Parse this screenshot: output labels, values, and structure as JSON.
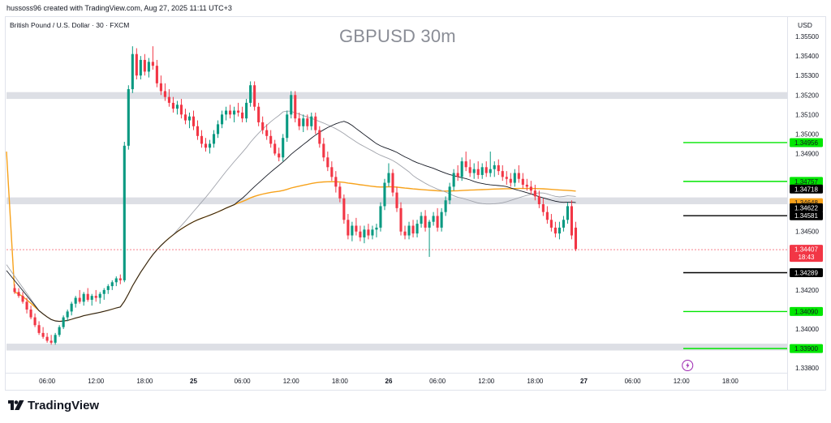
{
  "header": {
    "credit": "hussoss96 created with TradingView.com, Aug 27, 2025 11:11 UTC+3"
  },
  "symbol": {
    "label": "British Pound / U.S. Dollar · 30 · FXCM"
  },
  "currency_label": "USD",
  "brand": {
    "name": "TradingView"
  },
  "colors": {
    "up": "#089981",
    "down": "#f23645",
    "green_level": "#00e600",
    "black_level": "#000000",
    "orange": "#f7a21b",
    "zone": "#d1d4dc"
  },
  "chart_data": {
    "type": "candlestick",
    "title": "GBPUSD 30m",
    "ylim": [
      1.3378,
      1.356
    ],
    "y_ticks": [
      "1.35500",
      "1.35400",
      "1.35300",
      "1.35200",
      "1.35100",
      "1.35000",
      "1.34900",
      "1.34500",
      "1.34200",
      "1.34000",
      "1.33800"
    ],
    "x_ticks": [
      {
        "t": 8,
        "label": "06:00",
        "bold": false
      },
      {
        "t": 20,
        "label": "12:00",
        "bold": false
      },
      {
        "t": 32,
        "label": "18:00",
        "bold": false
      },
      {
        "t": 44,
        "label": "25",
        "bold": true
      },
      {
        "t": 56,
        "label": "06:00",
        "bold": false
      },
      {
        "t": 68,
        "label": "12:00",
        "bold": false
      },
      {
        "t": 80,
        "label": "18:00",
        "bold": false
      },
      {
        "t": 92,
        "label": "26",
        "bold": true
      },
      {
        "t": 104,
        "label": "06:00",
        "bold": false
      },
      {
        "t": 116,
        "label": "12:00",
        "bold": false
      },
      {
        "t": 128,
        "label": "18:00",
        "bold": false
      },
      {
        "t": 140,
        "label": "27",
        "bold": true
      },
      {
        "t": 152,
        "label": "06:00",
        "bold": false
      },
      {
        "t": 164,
        "label": "12:00",
        "bold": false
      },
      {
        "t": 176,
        "label": "18:00",
        "bold": false
      }
    ],
    "t_range": [
      -2,
      190
    ],
    "zones": [
      {
        "top": 1.35215,
        "bottom": 1.3518
      },
      {
        "top": 1.34675,
        "bottom": 1.3464
      },
      {
        "top": 1.33925,
        "bottom": 1.3389
      }
    ],
    "levels": [
      {
        "price": 1.34956,
        "label": "1.34956",
        "color": "green",
        "line": true
      },
      {
        "price": 1.34757,
        "label": "1.34757",
        "color": "green",
        "line": true
      },
      {
        "price": 1.34718,
        "label": "1.34718",
        "color": "black",
        "line": false
      },
      {
        "price": 1.34648,
        "label": "1.34648",
        "color": "orange",
        "line": false
      },
      {
        "price": 1.34622,
        "label": "1.34622",
        "color": "black",
        "line": false
      },
      {
        "price": 1.34581,
        "label": "1.34581",
        "color": "black",
        "line": true
      },
      {
        "price": 1.34289,
        "label": "1.34289",
        "color": "black",
        "line": true
      },
      {
        "price": 1.3409,
        "label": "1.34090",
        "color": "green",
        "line": true
      },
      {
        "price": 1.339,
        "label": "1.33900",
        "color": "green",
        "line": true
      }
    ],
    "current": {
      "price": 1.34407,
      "label": "1.34407",
      "countdown": "18:43"
    },
    "candles": [
      [
        1.3421,
        1.3423,
        1.3418,
        1.3419
      ],
      [
        1.3419,
        1.3421,
        1.3416,
        1.3417
      ],
      [
        1.3417,
        1.3419,
        1.3413,
        1.3414
      ],
      [
        1.3414,
        1.3416,
        1.3408,
        1.341
      ],
      [
        1.341,
        1.3412,
        1.3405,
        1.3406
      ],
      [
        1.3406,
        1.3408,
        1.3401,
        1.3402
      ],
      [
        1.3402,
        1.3404,
        1.3397,
        1.3398
      ],
      [
        1.3398,
        1.3401,
        1.3395,
        1.3396
      ],
      [
        1.3396,
        1.3398,
        1.3393,
        1.3394
      ],
      [
        1.3394,
        1.3397,
        1.3392,
        1.3393
      ],
      [
        1.3393,
        1.3398,
        1.3392,
        1.3397
      ],
      [
        1.3397,
        1.3402,
        1.3396,
        1.3401
      ],
      [
        1.3401,
        1.3407,
        1.34,
        1.3406
      ],
      [
        1.3406,
        1.341,
        1.3404,
        1.3409
      ],
      [
        1.3409,
        1.3414,
        1.3407,
        1.3413
      ],
      [
        1.3413,
        1.3417,
        1.3411,
        1.3416
      ],
      [
        1.3416,
        1.342,
        1.3413,
        1.3414
      ],
      [
        1.3414,
        1.3419,
        1.3412,
        1.3418
      ],
      [
        1.3418,
        1.3421,
        1.3414,
        1.3415
      ],
      [
        1.3415,
        1.3418,
        1.3412,
        1.3417
      ],
      [
        1.3417,
        1.342,
        1.3414,
        1.3416
      ],
      [
        1.3416,
        1.3419,
        1.3413,
        1.3418
      ],
      [
        1.3418,
        1.3421,
        1.3415,
        1.342
      ],
      [
        1.342,
        1.3423,
        1.3418,
        1.3422
      ],
      [
        1.3422,
        1.3425,
        1.342,
        1.3424
      ],
      [
        1.3424,
        1.3427,
        1.3422,
        1.3426
      ],
      [
        1.3426,
        1.3428,
        1.3423,
        1.3425
      ],
      [
        1.3425,
        1.3496,
        1.3424,
        1.3494
      ],
      [
        1.3494,
        1.3525,
        1.3492,
        1.3523
      ],
      [
        1.3523,
        1.3545,
        1.3521,
        1.3541
      ],
      [
        1.3541,
        1.3544,
        1.3528,
        1.353
      ],
      [
        1.353,
        1.354,
        1.3528,
        1.3538
      ],
      [
        1.3538,
        1.3541,
        1.353,
        1.3532
      ],
      [
        1.3532,
        1.3539,
        1.3529,
        1.3537
      ],
      [
        1.3537,
        1.3545,
        1.3533,
        1.3535
      ],
      [
        1.3535,
        1.3538,
        1.3524,
        1.3526
      ],
      [
        1.3526,
        1.353,
        1.352,
        1.3522
      ],
      [
        1.3522,
        1.3526,
        1.3517,
        1.3519
      ],
      [
        1.3519,
        1.3523,
        1.3514,
        1.3516
      ],
      [
        1.3516,
        1.3519,
        1.3511,
        1.3513
      ],
      [
        1.3513,
        1.3517,
        1.351,
        1.3515
      ],
      [
        1.3515,
        1.3518,
        1.3508,
        1.351
      ],
      [
        1.351,
        1.3513,
        1.3505,
        1.3507
      ],
      [
        1.3507,
        1.3511,
        1.3503,
        1.3509
      ],
      [
        1.3509,
        1.3512,
        1.3502,
        1.3504
      ],
      [
        1.3504,
        1.3507,
        1.3497,
        1.3499
      ],
      [
        1.3499,
        1.3502,
        1.3493,
        1.3495
      ],
      [
        1.3495,
        1.3498,
        1.3491,
        1.3493
      ],
      [
        1.3493,
        1.3497,
        1.349,
        1.3495
      ],
      [
        1.3495,
        1.3502,
        1.3493,
        1.35
      ],
      [
        1.35,
        1.3507,
        1.3498,
        1.3505
      ],
      [
        1.3505,
        1.3512,
        1.3503,
        1.351
      ],
      [
        1.351,
        1.3514,
        1.3507,
        1.3512
      ],
      [
        1.3512,
        1.3515,
        1.3508,
        1.351
      ],
      [
        1.351,
        1.3514,
        1.3506,
        1.3512
      ],
      [
        1.3512,
        1.3516,
        1.3509,
        1.3511
      ],
      [
        1.3511,
        1.3514,
        1.3506,
        1.3508
      ],
      [
        1.3508,
        1.3518,
        1.3506,
        1.3516
      ],
      [
        1.3516,
        1.3527,
        1.3514,
        1.3525
      ],
      [
        1.3525,
        1.3527,
        1.3512,
        1.3514
      ],
      [
        1.3514,
        1.3516,
        1.3504,
        1.3506
      ],
      [
        1.3506,
        1.3509,
        1.35,
        1.3502
      ],
      [
        1.3502,
        1.3505,
        1.3497,
        1.3499
      ],
      [
        1.3499,
        1.3502,
        1.3493,
        1.3495
      ],
      [
        1.3495,
        1.3497,
        1.3489,
        1.349
      ],
      [
        1.349,
        1.3493,
        1.3486,
        1.3488
      ],
      [
        1.3488,
        1.35,
        1.3486,
        1.3498
      ],
      [
        1.3498,
        1.3512,
        1.3496,
        1.351
      ],
      [
        1.351,
        1.3522,
        1.3508,
        1.352
      ],
      [
        1.352,
        1.3522,
        1.3506,
        1.3508
      ],
      [
        1.3508,
        1.3511,
        1.3502,
        1.3504
      ],
      [
        1.3504,
        1.351,
        1.3501,
        1.3508
      ],
      [
        1.3508,
        1.351,
        1.3502,
        1.3504
      ],
      [
        1.3504,
        1.3511,
        1.3502,
        1.3509
      ],
      [
        1.3509,
        1.3511,
        1.35,
        1.3502
      ],
      [
        1.3502,
        1.3504,
        1.3493,
        1.3495
      ],
      [
        1.3495,
        1.3498,
        1.3486,
        1.3488
      ],
      [
        1.3488,
        1.3491,
        1.3481,
        1.3483
      ],
      [
        1.3483,
        1.3486,
        1.3476,
        1.3478
      ],
      [
        1.3478,
        1.3481,
        1.347,
        1.3473
      ],
      [
        1.3473,
        1.3475,
        1.3465,
        1.3467
      ],
      [
        1.3467,
        1.3469,
        1.3454,
        1.3456
      ],
      [
        1.3456,
        1.3459,
        1.3446,
        1.3448
      ],
      [
        1.3448,
        1.3455,
        1.3445,
        1.3453
      ],
      [
        1.3453,
        1.3457,
        1.3448,
        1.345
      ],
      [
        1.345,
        1.3453,
        1.3445,
        1.3447
      ],
      [
        1.3447,
        1.3453,
        1.3444,
        1.3451
      ],
      [
        1.3451,
        1.3454,
        1.3446,
        1.3448
      ],
      [
        1.3448,
        1.3453,
        1.3446,
        1.3451
      ],
      [
        1.3451,
        1.3454,
        1.3447,
        1.3452
      ],
      [
        1.3452,
        1.3465,
        1.345,
        1.3463
      ],
      [
        1.3463,
        1.3477,
        1.3461,
        1.3475
      ],
      [
        1.3475,
        1.3485,
        1.3473,
        1.348
      ],
      [
        1.348,
        1.3482,
        1.3468,
        1.347
      ],
      [
        1.347,
        1.3473,
        1.346,
        1.3462
      ],
      [
        1.3462,
        1.3465,
        1.3448,
        1.345
      ],
      [
        1.345,
        1.3453,
        1.3446,
        1.3448
      ],
      [
        1.3448,
        1.3455,
        1.3446,
        1.3453
      ],
      [
        1.3453,
        1.3456,
        1.3447,
        1.3449
      ],
      [
        1.3449,
        1.3456,
        1.3447,
        1.3454
      ],
      [
        1.3454,
        1.346,
        1.3452,
        1.3458
      ],
      [
        1.3458,
        1.3461,
        1.345,
        1.3452
      ],
      [
        1.3452,
        1.3456,
        1.3437,
        1.3455
      ],
      [
        1.3455,
        1.346,
        1.3453,
        1.3458
      ],
      [
        1.3458,
        1.3462,
        1.345,
        1.3452
      ],
      [
        1.3452,
        1.3462,
        1.345,
        1.346
      ],
      [
        1.346,
        1.3468,
        1.3458,
        1.3466
      ],
      [
        1.3466,
        1.3475,
        1.3464,
        1.3473
      ],
      [
        1.3473,
        1.3482,
        1.3471,
        1.348
      ],
      [
        1.348,
        1.3484,
        1.3476,
        1.3478
      ],
      [
        1.3478,
        1.3488,
        1.3476,
        1.3486
      ],
      [
        1.3486,
        1.3491,
        1.3481,
        1.3483
      ],
      [
        1.3483,
        1.3487,
        1.3478,
        1.348
      ],
      [
        1.348,
        1.3485,
        1.3477,
        1.3482
      ],
      [
        1.3482,
        1.3486,
        1.3477,
        1.3479
      ],
      [
        1.3479,
        1.3485,
        1.3477,
        1.3483
      ],
      [
        1.3483,
        1.3486,
        1.3478,
        1.348
      ],
      [
        1.348,
        1.3491,
        1.3478,
        1.3482
      ],
      [
        1.3482,
        1.3486,
        1.3478,
        1.3484
      ],
      [
        1.3484,
        1.3487,
        1.3479,
        1.3481
      ],
      [
        1.3481,
        1.3484,
        1.3476,
        1.3478
      ],
      [
        1.3478,
        1.3481,
        1.3474,
        1.3477
      ],
      [
        1.3477,
        1.348,
        1.3473,
        1.3475
      ],
      [
        1.3475,
        1.3482,
        1.3473,
        1.348
      ],
      [
        1.348,
        1.3484,
        1.3475,
        1.3477
      ],
      [
        1.3477,
        1.348,
        1.3472,
        1.3474
      ],
      [
        1.3474,
        1.3477,
        1.3471,
        1.3473
      ],
      [
        1.3473,
        1.3476,
        1.3469,
        1.3471
      ],
      [
        1.3471,
        1.3474,
        1.3466,
        1.3468
      ],
      [
        1.3468,
        1.3471,
        1.3462,
        1.3464
      ],
      [
        1.3464,
        1.3467,
        1.3458,
        1.346
      ],
      [
        1.346,
        1.3463,
        1.3454,
        1.3456
      ],
      [
        1.3456,
        1.3459,
        1.345,
        1.3452
      ],
      [
        1.3452,
        1.3455,
        1.3447,
        1.3449
      ],
      [
        1.3449,
        1.3455,
        1.3446,
        1.3452
      ],
      [
        1.3452,
        1.3458,
        1.345,
        1.3456
      ],
      [
        1.3456,
        1.3465,
        1.3454,
        1.3463
      ],
      [
        1.3463,
        1.3466,
        1.3446,
        1.3448
      ],
      [
        1.3452,
        1.3455,
        1.344,
        1.3441
      ]
    ]
  }
}
